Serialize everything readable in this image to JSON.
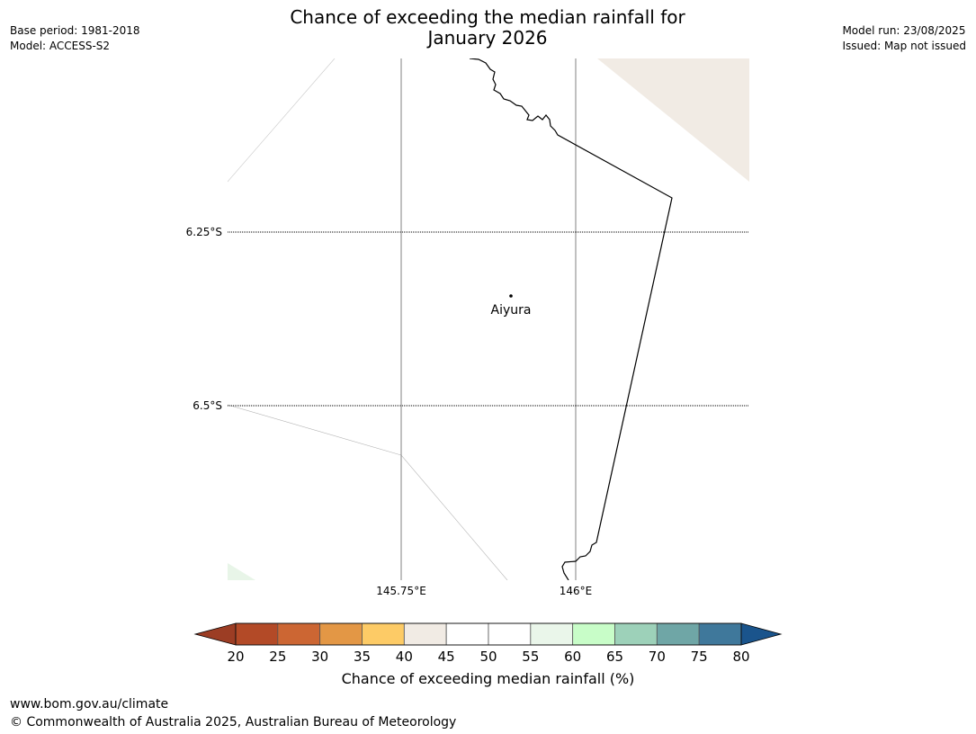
{
  "header": {
    "title_line1": "Chance of exceeding the median rainfall for",
    "title_line2": "January 2026",
    "base_period": "Base period: 1981-2018",
    "model": "Model: ACCESS-S2",
    "model_run": "Model run: 23/08/2025",
    "issued": "Issued: Map not issued"
  },
  "map": {
    "place_label": "Aiyura",
    "lat_labels": [
      "6.25°S",
      "6.5°S"
    ],
    "lon_labels": [
      "145.75°E",
      "146°E"
    ],
    "colors": {
      "region_40_45": "#f1ebe4",
      "region_55_60": "#e8f5e8",
      "coastline": "#000000",
      "gridline": "#000000"
    }
  },
  "colorbar": {
    "title": "Chance of exceeding median rainfall (%)",
    "ticks": [
      "20",
      "25",
      "30",
      "35",
      "40",
      "45",
      "50",
      "55",
      "60",
      "65",
      "70",
      "75",
      "80"
    ],
    "low_extend_color": "#9c3d24",
    "high_extend_color": "#1a548c",
    "colors": [
      "#b34a27",
      "#cc6633",
      "#e39745",
      "#fdcb66",
      "#f1ebe4",
      "#ffffff",
      "#ffffff",
      "#eaf6ea",
      "#c8fdc8",
      "#9dd1b9",
      "#6fa6a6",
      "#3f789b"
    ]
  },
  "footer": {
    "url": "www.bom.gov.au/climate",
    "copyright": "© Commonwealth of Australia 2025, Australian Bureau of Meteorology"
  }
}
